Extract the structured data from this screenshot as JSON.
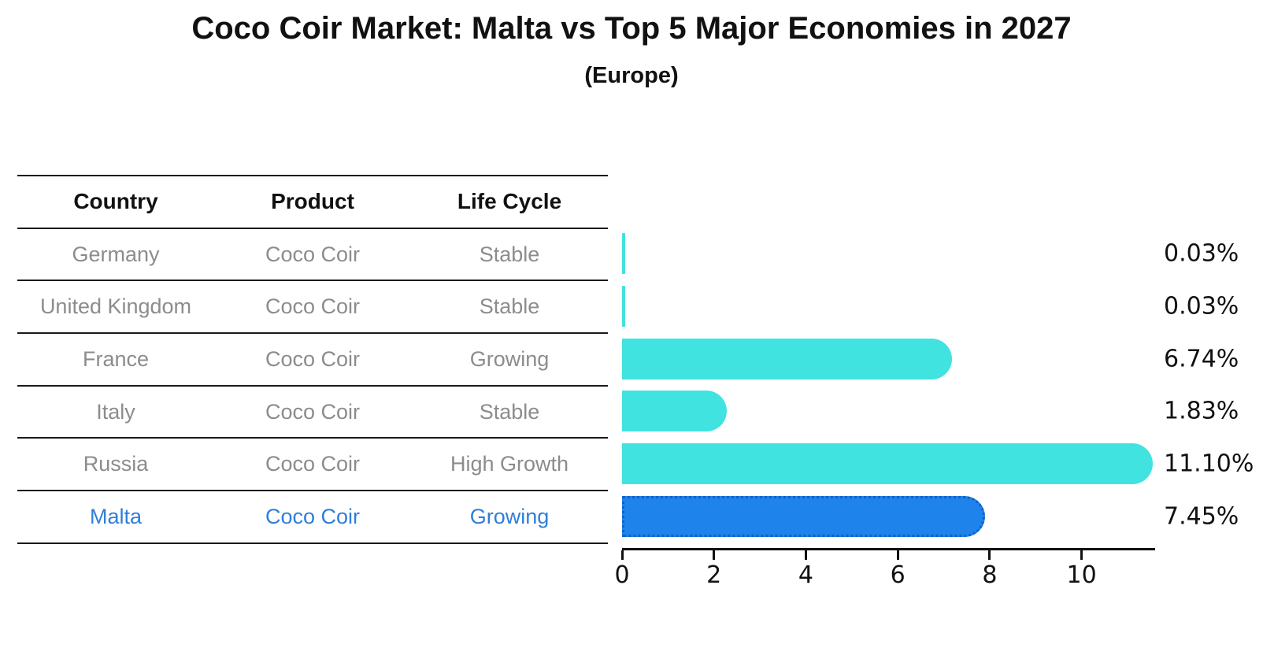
{
  "title": "Coco Coir Market: Malta vs Top 5 Major Economies in 2027",
  "subtitle": "(Europe)",
  "colors": {
    "row_text": "#8c8c8c",
    "header_text": "#111111",
    "highlight_text": "#2f7ed8",
    "axis": "#111111",
    "value_label": "#111111"
  },
  "table": {
    "headers": [
      "Country",
      "Product",
      "Life Cycle"
    ],
    "rows": [
      {
        "country": "Germany",
        "product": "Coco Coir",
        "life_cycle": "Stable",
        "highlight": false
      },
      {
        "country": "United Kingdom",
        "product": "Coco Coir",
        "life_cycle": "Stable",
        "highlight": false
      },
      {
        "country": "France",
        "product": "Coco Coir",
        "life_cycle": "Growing",
        "highlight": false
      },
      {
        "country": "Italy",
        "product": "Coco Coir",
        "life_cycle": "Stable",
        "highlight": false
      },
      {
        "country": "Russia",
        "product": "Coco Coir",
        "life_cycle": "High Growth",
        "highlight": false
      },
      {
        "country": "Malta",
        "product": "Coco Coir",
        "life_cycle": "Growing",
        "highlight": true
      }
    ]
  },
  "chart_data": {
    "type": "bar",
    "orientation": "horizontal",
    "title": "Coco Coir Market: Malta vs Top 5 Major Economies in 2027",
    "subtitle": "(Europe)",
    "categories": [
      "Germany",
      "United Kingdom",
      "France",
      "Italy",
      "Russia",
      "Malta"
    ],
    "values": [
      0.03,
      0.03,
      6.74,
      1.83,
      11.1,
      7.45
    ],
    "value_labels": [
      "0.03%",
      "0.03%",
      "6.74%",
      "1.83%",
      "11.10%",
      "7.45%"
    ],
    "xlabel": "",
    "ylabel": "",
    "xlim": [
      0,
      11.6
    ],
    "xticks": [
      0,
      2,
      4,
      6,
      8,
      10
    ],
    "grid": false,
    "legend": false,
    "bar_color": "#40E3DF",
    "highlight_index": 5,
    "highlight_color": "#1E83EA",
    "highlight_border": "#1261c9"
  }
}
